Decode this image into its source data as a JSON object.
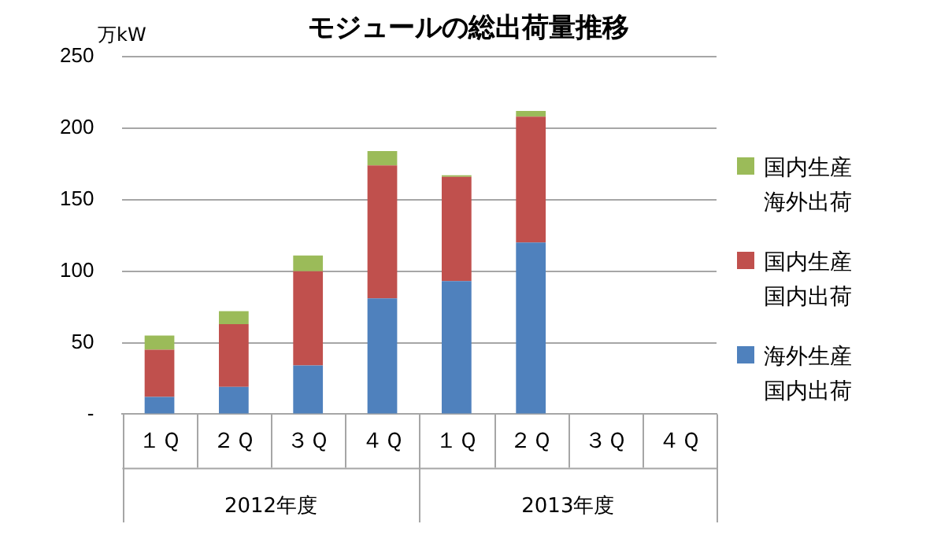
{
  "chart_data": {
    "type": "bar",
    "title": "モジュールの総出荷量推移",
    "ylabel": "万kW",
    "categories": [
      "１Ｑ",
      "２Ｑ",
      "３Ｑ",
      "４Ｑ",
      "１Ｑ",
      "２Ｑ",
      "３Ｑ",
      "４Ｑ"
    ],
    "stacked": true,
    "series": [
      {
        "name": "海外生産国内出荷",
        "color": "#4f81bd",
        "values": [
          12,
          19,
          34,
          81,
          93,
          120,
          null,
          null
        ]
      },
      {
        "name": "国内生産国内出荷",
        "color": "#c0504d",
        "values": [
          33,
          44,
          66,
          93,
          73,
          88,
          null,
          null
        ]
      },
      {
        "name": "国内生産海外出荷",
        "color": "#9bbb59",
        "values": [
          10,
          9,
          11,
          10,
          1,
          4,
          null,
          null
        ]
      }
    ],
    "annotations": [
      "2012年度",
      "2013年度"
    ],
    "ylim": [
      0,
      250
    ],
    "yticks": [
      {
        "value": 0,
        "label": "-"
      },
      50,
      100,
      150,
      200,
      250
    ],
    "grid": "y",
    "legend": "right"
  }
}
